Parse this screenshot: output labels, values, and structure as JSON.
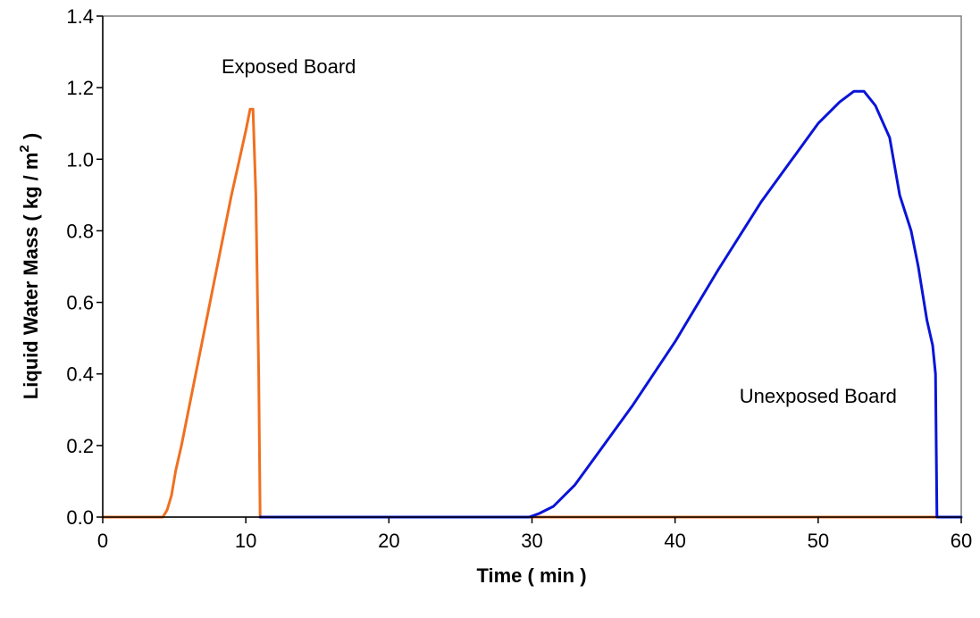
{
  "chart_data": {
    "type": "line",
    "title": "",
    "xlabel": "Time ( min )",
    "ylabel_parts": {
      "main": "Liquid Water Mass ( kg / m",
      "superscript": "2",
      "close": " )"
    },
    "xlim": [
      0,
      60
    ],
    "ylim": [
      0,
      1.4
    ],
    "x_ticks": [
      "0",
      "10",
      "20",
      "30",
      "40",
      "50",
      "60"
    ],
    "x_tick_values": [
      0,
      10,
      20,
      30,
      40,
      50,
      60
    ],
    "y_ticks": [
      "0.0",
      "0.2",
      "0.4",
      "0.6",
      "0.8",
      "1.0",
      "1.2",
      "1.4"
    ],
    "y_tick_values": [
      0,
      0.2,
      0.4,
      0.6,
      0.8,
      1.0,
      1.2,
      1.4
    ],
    "grid": false,
    "legend": "none",
    "series": [
      {
        "color": "#F07020",
        "points": [
          [
            0,
            0
          ],
          [
            4.2,
            0
          ],
          [
            4.5,
            0.02
          ],
          [
            4.8,
            0.06
          ],
          [
            5.1,
            0.13
          ],
          [
            5.5,
            0.2
          ],
          [
            6.0,
            0.3
          ],
          [
            6.5,
            0.4
          ],
          [
            7.0,
            0.5
          ],
          [
            7.5,
            0.6
          ],
          [
            8.0,
            0.7
          ],
          [
            8.5,
            0.8
          ],
          [
            9.0,
            0.9
          ],
          [
            9.5,
            0.99
          ],
          [
            10.0,
            1.08
          ],
          [
            10.3,
            1.14
          ],
          [
            10.5,
            1.14
          ],
          [
            10.7,
            0.9
          ],
          [
            10.9,
            0.4
          ],
          [
            11.0,
            0.0
          ],
          [
            30,
            0
          ],
          [
            58.3,
            0
          ]
        ]
      },
      {
        "color": "#0A14D8",
        "points": [
          [
            11.0,
            0
          ],
          [
            29.8,
            0
          ],
          [
            30.5,
            0.01
          ],
          [
            31.5,
            0.03
          ],
          [
            33,
            0.09
          ],
          [
            35,
            0.2
          ],
          [
            37,
            0.31
          ],
          [
            40,
            0.49
          ],
          [
            43,
            0.69
          ],
          [
            46,
            0.88
          ],
          [
            48,
            0.99
          ],
          [
            50,
            1.1
          ],
          [
            51.5,
            1.16
          ],
          [
            52.5,
            1.19
          ],
          [
            53.2,
            1.19
          ],
          [
            54,
            1.15
          ],
          [
            55,
            1.06
          ],
          [
            55.7,
            0.9
          ],
          [
            56.5,
            0.8
          ],
          [
            57.0,
            0.7
          ],
          [
            57.6,
            0.55
          ],
          [
            58.0,
            0.48
          ],
          [
            58.2,
            0.4
          ],
          [
            58.3,
            0.0
          ],
          [
            60,
            0
          ]
        ]
      }
    ],
    "annotations": [
      {
        "text": "Exposed Board",
        "x": 13.0,
        "y": 1.24
      },
      {
        "text": "Unexposed Board",
        "x": 50.0,
        "y": 0.32
      }
    ]
  }
}
